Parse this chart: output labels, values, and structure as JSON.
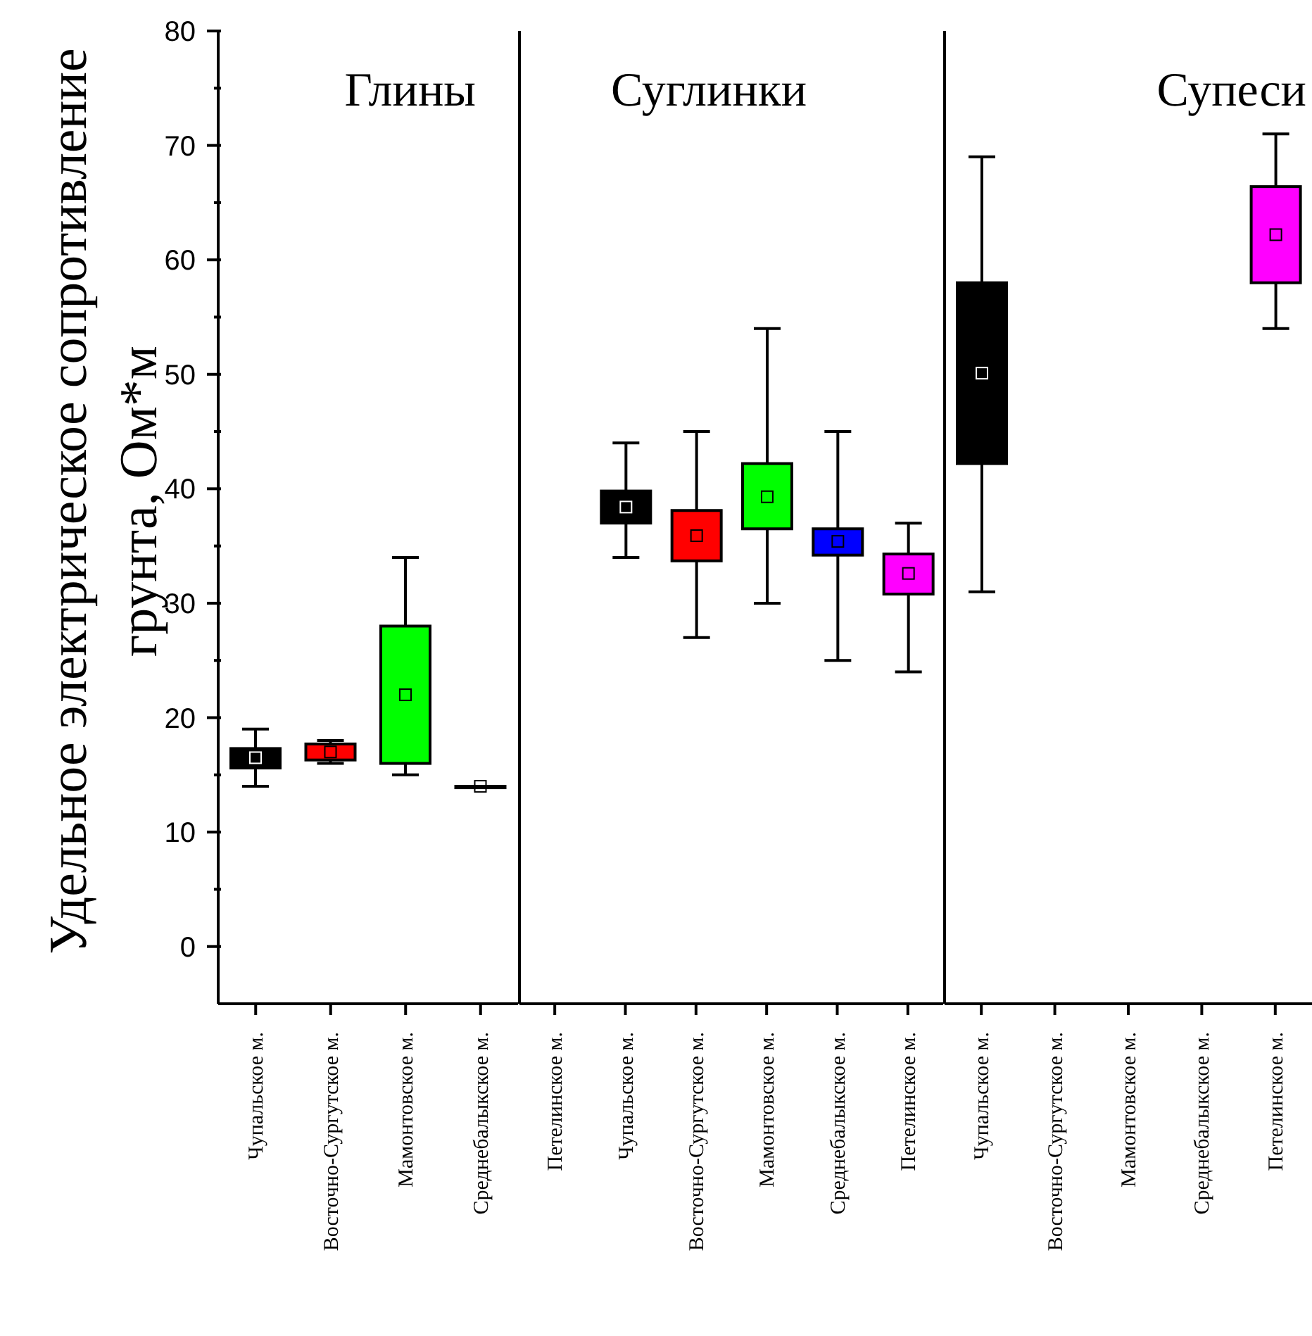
{
  "chart_data": [
    {
      "type": "box",
      "title": "Глины",
      "ylabel": "Удельное электрическое сопротивление грунта, Ом*м",
      "categories": [
        "Чупальское м.",
        "Восточно-Сургутское м.",
        "Мамонтовское м.",
        "Среднебалыкское м."
      ],
      "colors": [
        "#000000",
        "#ff0000",
        "#00ff00",
        "#0000ff"
      ],
      "boxes": [
        {
          "low": 14,
          "q1": 15.6,
          "q3": 17.3,
          "high": 19,
          "mean": 16.5
        },
        {
          "low": 16,
          "q1": 16.3,
          "q3": 17.7,
          "high": 18,
          "mean": 17
        },
        {
          "low": 15,
          "q1": 16,
          "q3": 28,
          "high": 34,
          "mean": 22
        },
        {
          "low": 14,
          "q1": 14,
          "q3": 14,
          "high": 14,
          "mean": 14
        }
      ],
      "ylim": [
        -5,
        80
      ],
      "yticks": [
        0,
        {
          "value": 5,
          "label": null
        },
        10,
        {
          "value": 15,
          "label": null
        },
        20,
        {
          "value": 25,
          "label": null
        },
        30,
        {
          "value": 35,
          "label": null
        },
        40,
        {
          "value": 45,
          "label": null
        },
        50,
        {
          "value": 55,
          "label": null
        },
        60,
        {
          "value": 65,
          "label": null
        },
        70,
        {
          "value": 75,
          "label": null
        },
        80
      ]
    },
    {
      "type": "box",
      "title": "Суглинки",
      "categories": [
        "Петелинское м.",
        "Чупальское м.",
        "Восточно-Сургутское м.",
        "Мамонтовское м.",
        "Среднебалыкское м.",
        "Петелинское м."
      ],
      "colors": [
        null,
        "#000000",
        "#ff0000",
        "#00ff00",
        "#0000ff",
        "#ff00ff"
      ],
      "boxes": [
        null,
        {
          "low": 34,
          "q1": 37,
          "q3": 39.8,
          "high": 44,
          "mean": 38.4
        },
        {
          "low": 27,
          "q1": 33.7,
          "q3": 38.1,
          "high": 45,
          "mean": 35.9
        },
        {
          "low": 30,
          "q1": 36.5,
          "q3": 42.2,
          "high": 54,
          "mean": 39.3
        },
        {
          "low": 25,
          "q1": 34.2,
          "q3": 36.5,
          "high": 45,
          "mean": 35.4
        },
        {
          "low": 24,
          "q1": 30.8,
          "q3": 34.3,
          "high": 37,
          "mean": 32.6
        }
      ],
      "ylim": [
        -5,
        80
      ],
      "tick_labels": "x"
    },
    {
      "type": "box",
      "title": "Супеси",
      "categories": [
        "Чупальское м.",
        "Восточно-Сургутское м.",
        "Мамонтовское м.",
        "Среднебалыкское м.",
        "Петелинское м."
      ],
      "colors": [
        "#000000",
        null,
        null,
        null,
        "#ff00ff"
      ],
      "boxes": [
        {
          "low": 31,
          "q1": 42.2,
          "q3": 58,
          "high": 69,
          "mean": 50.1
        },
        null,
        null,
        null,
        {
          "low": 54,
          "q1": 58,
          "q3": 66.4,
          "high": 71,
          "mean": 62.2
        }
      ],
      "ylim": [
        -5,
        80
      ],
      "tick_labels": "x"
    }
  ]
}
